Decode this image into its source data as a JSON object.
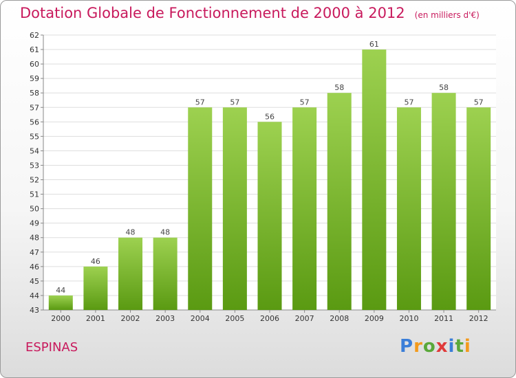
{
  "header": {
    "title": "Dotation Globale de Fonctionnement de 2000 à 2012",
    "subtitle": "(en milliers d'€)"
  },
  "footer": {
    "place": "ESPINAS",
    "logo_text": "Proxiti"
  },
  "colors": {
    "title": "#c8195c",
    "bar_top": "#9dd150",
    "bar_bottom": "#5a9a12",
    "logo_letters": [
      "#3a7ed8",
      "#f39a1c",
      "#5aa83a",
      "#e03a3a",
      "#3a7ed8",
      "#5aa83a",
      "#f39a1c"
    ]
  },
  "chart_data": {
    "type": "bar",
    "title": "Dotation Globale de Fonctionnement de 2000 à 2012",
    "subtitle": "(en milliers d'€)",
    "categories": [
      "2000",
      "2001",
      "2002",
      "2003",
      "2004",
      "2005",
      "2006",
      "2007",
      "2008",
      "2009",
      "2010",
      "2011",
      "2012"
    ],
    "values": [
      44,
      46,
      48,
      48,
      57,
      57,
      56,
      57,
      58,
      61,
      57,
      58,
      57
    ],
    "ylim": [
      43,
      62
    ],
    "yticks": [
      43,
      44,
      45,
      46,
      47,
      48,
      49,
      50,
      51,
      52,
      53,
      54,
      55,
      56,
      57,
      58,
      59,
      60,
      61,
      62
    ],
    "grid": true,
    "data_labels": true
  }
}
